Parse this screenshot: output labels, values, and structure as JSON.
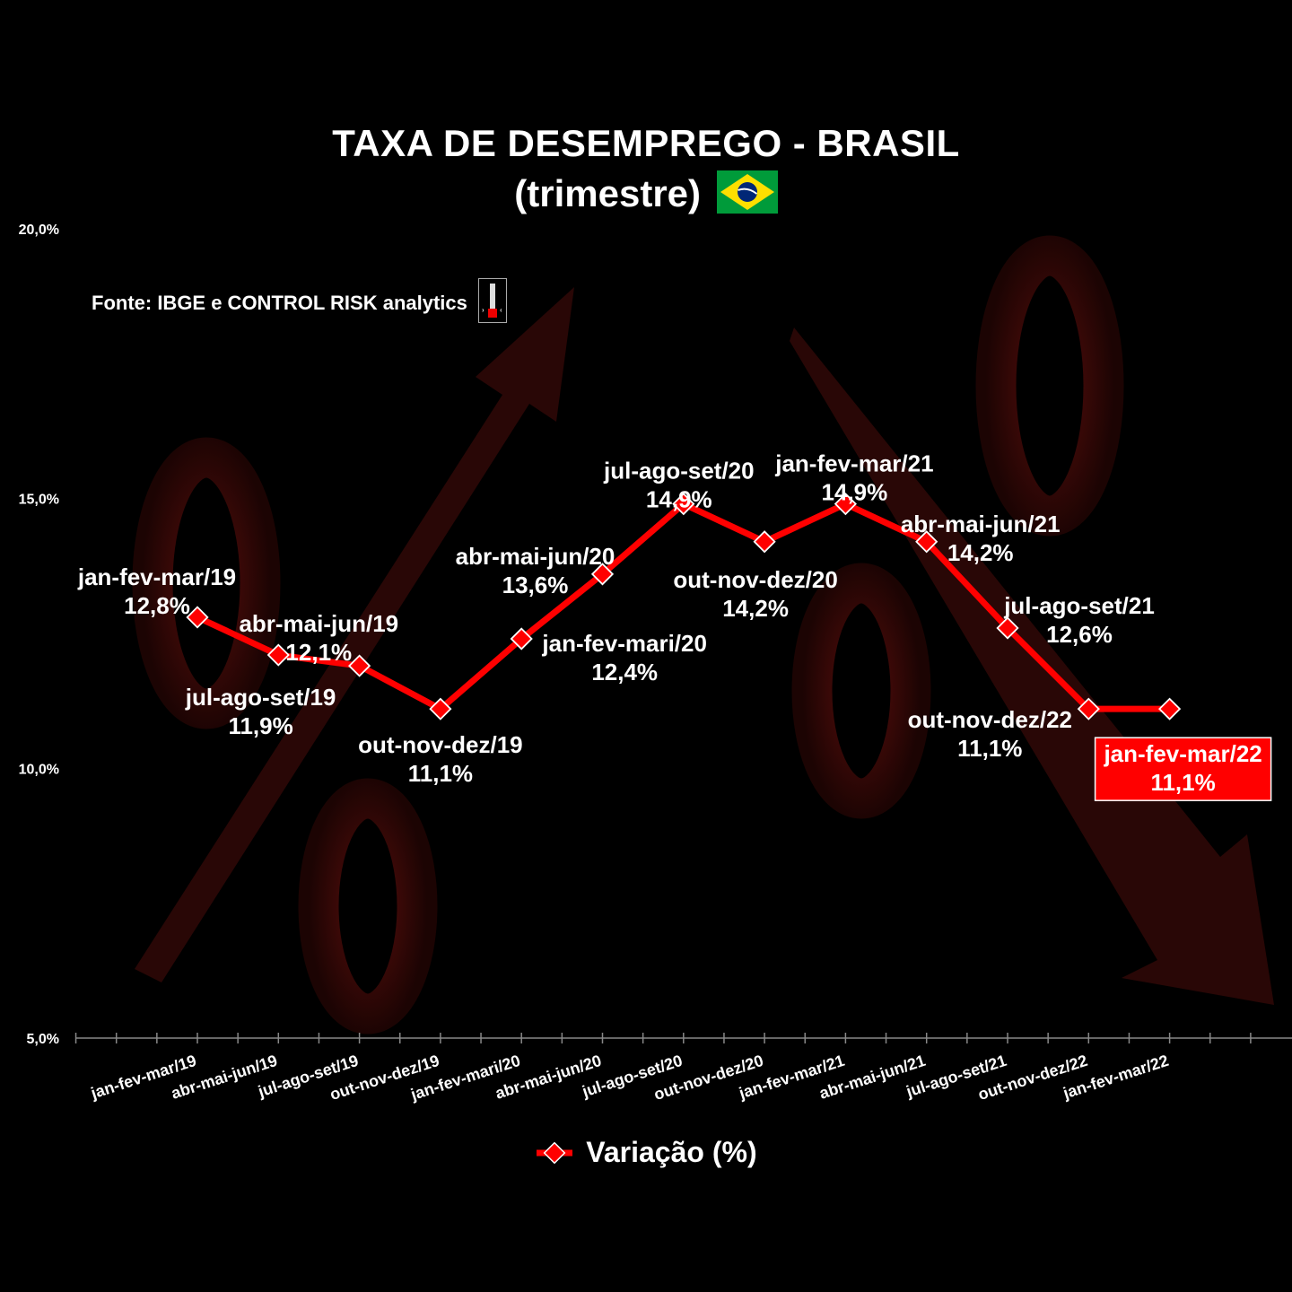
{
  "header": {
    "title": "TAXA DE DESEMPREGO - BRASIL",
    "subtitle": "(trimestre)",
    "source": "Fonte: IBGE e CONTROL RISK analytics"
  },
  "icons": {
    "flag": "brazil-flag-icon",
    "logo": "thermometer-logo-icon"
  },
  "colors": {
    "line": "#ff0000",
    "background": "#000000",
    "highlight": "#ff0000"
  },
  "chart_data": {
    "type": "line",
    "title": "TAXA DE DESEMPREGO - BRASIL",
    "subtitle": "(trimestre)",
    "categories": [
      "jan-fev-mar/19",
      "abr-mai-jun/19",
      "jul-ago-set/19",
      "out-nov-dez/19",
      "jan-fev-mari/20",
      "abr-mai-jun/20",
      "jul-ago-set/20",
      "out-nov-dez/20",
      "jan-fev-mar/21",
      "abr-mai-jun/21",
      "jul-ago-set/21",
      "out-nov-dez/22",
      "jan-fev-mar/22"
    ],
    "series": [
      {
        "name": "Variação (%)",
        "values": [
          12.8,
          12.1,
          11.9,
          11.1,
          12.4,
          13.6,
          14.9,
          14.2,
          14.9,
          14.2,
          12.6,
          11.1,
          11.1
        ],
        "labels": [
          "12,8%",
          "12,1%",
          "11,9%",
          "11,1%",
          "12,4%",
          "13,6%",
          "14,9%",
          "14,2%",
          "14,9%",
          "14,2%",
          "12,6%",
          "11,1%",
          "11,1%"
        ]
      }
    ],
    "ylim": [
      5,
      20
    ],
    "yticks": [
      "5,0%",
      "10,0%",
      "15,0%",
      "20,0%"
    ],
    "ytick_values": [
      5,
      10,
      15,
      20
    ],
    "grid": false,
    "legend": "bottom",
    "highlight_last": true
  }
}
